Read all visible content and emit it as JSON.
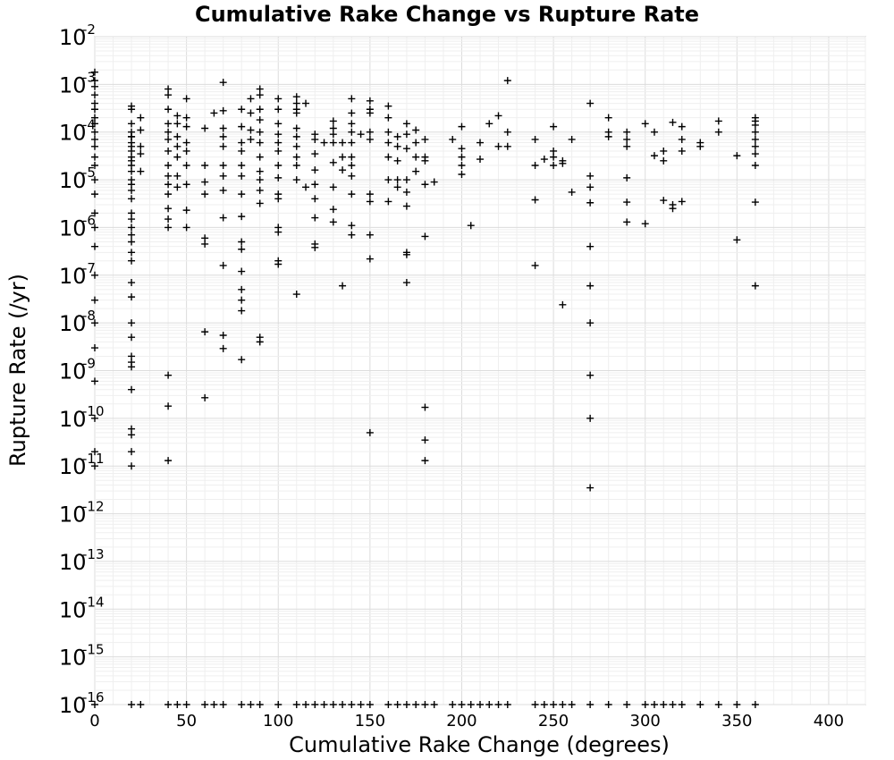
{
  "chart_data": {
    "type": "scatter",
    "title": "Cumulative Rake Change vs Rupture Rate",
    "xlabel": "Cumulative Rake Change (degrees)",
    "ylabel": "Rupture Rate (/yr)",
    "xlim": [
      0,
      420
    ],
    "ylim": [
      1e-16,
      0.01
    ],
    "yscale": "log",
    "grid": true,
    "marker": "plus",
    "marker_color": "#000000",
    "xticks": [
      "0",
      "50",
      "100",
      "150",
      "200",
      "250",
      "300",
      "350",
      "400"
    ],
    "yticks": [
      {
        "base": "10",
        "exp": "-2"
      },
      {
        "base": "10",
        "exp": "-3"
      },
      {
        "base": "10",
        "exp": "-4"
      },
      {
        "base": "10",
        "exp": "-5"
      },
      {
        "base": "10",
        "exp": "-6"
      },
      {
        "base": "10",
        "exp": "-7"
      },
      {
        "base": "10",
        "exp": "-8"
      },
      {
        "base": "10",
        "exp": "-9"
      },
      {
        "base": "10",
        "exp": "-10"
      },
      {
        "base": "10",
        "exp": "-11"
      },
      {
        "base": "10",
        "exp": "-12"
      },
      {
        "base": "10",
        "exp": "-13"
      },
      {
        "base": "10",
        "exp": "-14"
      },
      {
        "base": "10",
        "exp": "-15"
      },
      {
        "base": "10",
        "exp": "-16"
      }
    ],
    "points": [
      [
        0,
        0.0018
      ],
      [
        0,
        0.0012
      ],
      [
        0,
        0.0009
      ],
      [
        0,
        0.0006
      ],
      [
        0,
        0.0004
      ],
      [
        0,
        0.0003
      ],
      [
        0,
        0.0002
      ],
      [
        0,
        0.00015
      ],
      [
        0,
        0.0001
      ],
      [
        0,
        7e-05
      ],
      [
        0,
        5e-05
      ],
      [
        0,
        3e-05
      ],
      [
        0,
        2e-05
      ],
      [
        0,
        1e-05
      ],
      [
        0,
        5e-06
      ],
      [
        0,
        2e-06
      ],
      [
        0,
        1e-06
      ],
      [
        0,
        4e-07
      ],
      [
        0,
        1e-07
      ],
      [
        0,
        3e-08
      ],
      [
        0,
        1e-08
      ],
      [
        0,
        3e-09
      ],
      [
        0,
        6e-10
      ],
      [
        0,
        1e-10
      ],
      [
        0,
        2e-11
      ],
      [
        0,
        1e-11
      ],
      [
        0,
        1e-16
      ],
      [
        20,
        0.00035
      ],
      [
        20,
        0.0003
      ],
      [
        20,
        0.00015
      ],
      [
        20,
        0.0001
      ],
      [
        20,
        8e-05
      ],
      [
        20,
        8e-05
      ],
      [
        20,
        6e-05
      ],
      [
        20,
        5e-05
      ],
      [
        20,
        4e-05
      ],
      [
        20,
        3e-05
      ],
      [
        20,
        2.5e-05
      ],
      [
        20,
        2e-05
      ],
      [
        20,
        1.5e-05
      ],
      [
        20,
        1e-05
      ],
      [
        20,
        8e-06
      ],
      [
        20,
        6e-06
      ],
      [
        20,
        4e-06
      ],
      [
        20,
        2e-06
      ],
      [
        20,
        1.5e-06
      ],
      [
        20,
        1e-06
      ],
      [
        20,
        7e-07
      ],
      [
        20,
        5e-07
      ],
      [
        20,
        3e-07
      ],
      [
        20,
        2e-07
      ],
      [
        20,
        7e-08
      ],
      [
        20,
        3.5e-08
      ],
      [
        20,
        1e-08
      ],
      [
        20,
        5e-09
      ],
      [
        20,
        2e-09
      ],
      [
        20,
        1.5e-09
      ],
      [
        20,
        1.2e-09
      ],
      [
        20,
        4e-10
      ],
      [
        20,
        6e-11
      ],
      [
        20,
        4.5e-11
      ],
      [
        20,
        2e-11
      ],
      [
        20,
        1e-11
      ],
      [
        20,
        1e-16
      ],
      [
        25,
        0.0002
      ],
      [
        25,
        0.00011
      ],
      [
        25,
        5e-05
      ],
      [
        25,
        3.5e-05
      ],
      [
        25,
        1.5e-05
      ],
      [
        25,
        1e-16
      ],
      [
        40,
        0.0008
      ],
      [
        40,
        0.0006
      ],
      [
        40,
        0.0003
      ],
      [
        40,
        0.00015
      ],
      [
        40,
        0.0001
      ],
      [
        40,
        7e-05
      ],
      [
        40,
        4e-05
      ],
      [
        40,
        2e-05
      ],
      [
        40,
        1.2e-05
      ],
      [
        40,
        8e-06
      ],
      [
        40,
        5e-06
      ],
      [
        40,
        2.5e-06
      ],
      [
        40,
        1.5e-06
      ],
      [
        40,
        1e-06
      ],
      [
        40,
        8e-10
      ],
      [
        40,
        1.8e-10
      ],
      [
        40,
        1.3e-11
      ],
      [
        40,
        1e-16
      ],
      [
        45,
        0.00022
      ],
      [
        45,
        0.00015
      ],
      [
        45,
        8e-05
      ],
      [
        45,
        5e-05
      ],
      [
        45,
        3e-05
      ],
      [
        45,
        1.2e-05
      ],
      [
        45,
        7e-06
      ],
      [
        45,
        1e-16
      ],
      [
        50,
        0.0005
      ],
      [
        50,
        0.0002
      ],
      [
        50,
        0.00013
      ],
      [
        50,
        6e-05
      ],
      [
        50,
        4e-05
      ],
      [
        50,
        2e-05
      ],
      [
        50,
        8e-06
      ],
      [
        50,
        2.3e-06
      ],
      [
        50,
        1e-06
      ],
      [
        50,
        1e-16
      ],
      [
        60,
        0.00012
      ],
      [
        60,
        2e-05
      ],
      [
        60,
        9e-06
      ],
      [
        60,
        5e-06
      ],
      [
        60,
        6e-07
      ],
      [
        60,
        4.5e-07
      ],
      [
        60,
        6.5e-09
      ],
      [
        60,
        2.7e-10
      ],
      [
        60,
        1e-16
      ],
      [
        65,
        0.00025
      ],
      [
        65,
        1e-16
      ],
      [
        70,
        0.0011
      ],
      [
        70,
        0.00028
      ],
      [
        70,
        0.00012
      ],
      [
        70,
        8e-05
      ],
      [
        70,
        5e-05
      ],
      [
        70,
        2e-05
      ],
      [
        70,
        1.2e-05
      ],
      [
        70,
        6e-06
      ],
      [
        70,
        1.6e-06
      ],
      [
        70,
        1.6e-07
      ],
      [
        70,
        5.5e-09
      ],
      [
        70,
        2.9e-09
      ],
      [
        70,
        1e-16
      ],
      [
        80,
        0.0003
      ],
      [
        80,
        0.00013
      ],
      [
        80,
        6e-05
      ],
      [
        80,
        4e-05
      ],
      [
        80,
        2e-05
      ],
      [
        80,
        1.2e-05
      ],
      [
        80,
        5e-06
      ],
      [
        80,
        1.7e-06
      ],
      [
        80,
        5e-07
      ],
      [
        80,
        3.5e-07
      ],
      [
        80,
        1.2e-07
      ],
      [
        80,
        5e-08
      ],
      [
        80,
        3e-08
      ],
      [
        80,
        1.8e-08
      ],
      [
        80,
        1.7e-09
      ],
      [
        80,
        1e-16
      ],
      [
        85,
        0.0005
      ],
      [
        85,
        0.00025
      ],
      [
        85,
        0.00011
      ],
      [
        85,
        7e-05
      ],
      [
        85,
        1e-16
      ],
      [
        90,
        0.0008
      ],
      [
        90,
        0.0006
      ],
      [
        90,
        0.0003
      ],
      [
        90,
        0.00018
      ],
      [
        90,
        0.0001
      ],
      [
        90,
        6e-05
      ],
      [
        90,
        3e-05
      ],
      [
        90,
        1.5e-05
      ],
      [
        90,
        1e-05
      ],
      [
        90,
        6e-06
      ],
      [
        90,
        3.2e-06
      ],
      [
        90,
        5e-09
      ],
      [
        90,
        4e-09
      ],
      [
        90,
        1e-16
      ],
      [
        100,
        0.0005
      ],
      [
        100,
        0.0003
      ],
      [
        100,
        0.00015
      ],
      [
        100,
        9e-05
      ],
      [
        100,
        6e-05
      ],
      [
        100,
        4e-05
      ],
      [
        100,
        2e-05
      ],
      [
        100,
        1.1e-05
      ],
      [
        100,
        5e-06
      ],
      [
        100,
        4e-06
      ],
      [
        100,
        1e-06
      ],
      [
        100,
        8e-07
      ],
      [
        100,
        2e-07
      ],
      [
        100,
        1.7e-07
      ],
      [
        100,
        1e-16
      ],
      [
        110,
        0.00055
      ],
      [
        110,
        0.0004
      ],
      [
        110,
        0.0003
      ],
      [
        110,
        0.00025
      ],
      [
        110,
        0.00012
      ],
      [
        110,
        8e-05
      ],
      [
        110,
        5e-05
      ],
      [
        110,
        3e-05
      ],
      [
        110,
        2e-05
      ],
      [
        110,
        1e-05
      ],
      [
        110,
        4e-08
      ],
      [
        110,
        1e-16
      ],
      [
        115,
        0.0004
      ],
      [
        115,
        7e-06
      ],
      [
        115,
        1e-16
      ],
      [
        120,
        9e-05
      ],
      [
        120,
        7e-05
      ],
      [
        120,
        3.5e-05
      ],
      [
        120,
        1.6e-05
      ],
      [
        120,
        8e-06
      ],
      [
        120,
        4e-06
      ],
      [
        120,
        1.6e-06
      ],
      [
        120,
        4.5e-07
      ],
      [
        120,
        3.8e-07
      ],
      [
        120,
        1e-16
      ],
      [
        125,
        6e-05
      ],
      [
        125,
        1e-16
      ],
      [
        130,
        0.00017
      ],
      [
        130,
        0.00012
      ],
      [
        130,
        9e-05
      ],
      [
        130,
        6e-05
      ],
      [
        130,
        2.3e-05
      ],
      [
        130,
        7e-06
      ],
      [
        130,
        2.4e-06
      ],
      [
        130,
        1.3e-06
      ],
      [
        130,
        1e-16
      ],
      [
        135,
        6e-05
      ],
      [
        135,
        3e-05
      ],
      [
        135,
        1.6e-05
      ],
      [
        135,
        6e-08
      ],
      [
        135,
        1e-16
      ],
      [
        140,
        0.0005
      ],
      [
        140,
        0.00025
      ],
      [
        140,
        0.00015
      ],
      [
        140,
        0.0001
      ],
      [
        140,
        6e-05
      ],
      [
        140,
        3e-05
      ],
      [
        140,
        2e-05
      ],
      [
        140,
        1.2e-05
      ],
      [
        140,
        5e-06
      ],
      [
        140,
        1.1e-06
      ],
      [
        140,
        7e-07
      ],
      [
        140,
        1e-16
      ],
      [
        145,
        9e-05
      ],
      [
        145,
        1e-16
      ],
      [
        150,
        0.00045
      ],
      [
        150,
        0.0003
      ],
      [
        150,
        0.00025
      ],
      [
        150,
        0.0001
      ],
      [
        150,
        7e-05
      ],
      [
        150,
        5e-06
      ],
      [
        150,
        3.5e-06
      ],
      [
        150,
        7e-07
      ],
      [
        150,
        2.2e-07
      ],
      [
        150,
        5e-11
      ],
      [
        150,
        1e-16
      ],
      [
        160,
        0.00035
      ],
      [
        160,
        0.0002
      ],
      [
        160,
        0.0001
      ],
      [
        160,
        6e-05
      ],
      [
        160,
        3e-05
      ],
      [
        160,
        1e-05
      ],
      [
        160,
        3.5e-06
      ],
      [
        160,
        1e-16
      ],
      [
        165,
        8e-05
      ],
      [
        165,
        5e-05
      ],
      [
        165,
        2.5e-05
      ],
      [
        165,
        1e-05
      ],
      [
        165,
        7e-06
      ],
      [
        165,
        1e-16
      ],
      [
        170,
        0.00015
      ],
      [
        170,
        9e-05
      ],
      [
        170,
        4.5e-05
      ],
      [
        170,
        1e-05
      ],
      [
        170,
        5.5e-06
      ],
      [
        170,
        2.8e-06
      ],
      [
        170,
        3e-07
      ],
      [
        170,
        2.7e-07
      ],
      [
        170,
        7e-08
      ],
      [
        170,
        1e-16
      ],
      [
        175,
        0.00011
      ],
      [
        175,
        6e-05
      ],
      [
        175,
        3e-05
      ],
      [
        175,
        1.5e-05
      ],
      [
        175,
        1e-16
      ],
      [
        180,
        7e-05
      ],
      [
        180,
        3e-05
      ],
      [
        180,
        2.5e-05
      ],
      [
        180,
        8e-06
      ],
      [
        180,
        6.5e-07
      ],
      [
        180,
        1.7e-10
      ],
      [
        180,
        3.5e-11
      ],
      [
        180,
        1.3e-11
      ],
      [
        180,
        1e-16
      ],
      [
        185,
        9e-06
      ],
      [
        185,
        1e-16
      ],
      [
        195,
        7e-05
      ],
      [
        195,
        1e-16
      ],
      [
        200,
        0.00013
      ],
      [
        200,
        4.5e-05
      ],
      [
        200,
        3e-05
      ],
      [
        200,
        2e-05
      ],
      [
        200,
        1.3e-05
      ],
      [
        200,
        1e-16
      ],
      [
        205,
        1.1e-06
      ],
      [
        205,
        1e-16
      ],
      [
        210,
        6e-05
      ],
      [
        210,
        2.7e-05
      ],
      [
        210,
        1e-16
      ],
      [
        215,
        0.00015
      ],
      [
        215,
        1e-16
      ],
      [
        220,
        0.00022
      ],
      [
        220,
        5e-05
      ],
      [
        220,
        1e-16
      ],
      [
        225,
        0.0012
      ],
      [
        225,
        0.0001
      ],
      [
        225,
        5e-05
      ],
      [
        225,
        1e-16
      ],
      [
        240,
        7e-05
      ],
      [
        240,
        2e-05
      ],
      [
        240,
        3.8e-06
      ],
      [
        240,
        1.6e-07
      ],
      [
        240,
        1e-16
      ],
      [
        245,
        2.7e-05
      ],
      [
        245,
        1e-16
      ],
      [
        250,
        0.00013
      ],
      [
        250,
        4e-05
      ],
      [
        250,
        3e-05
      ],
      [
        250,
        2e-05
      ],
      [
        250,
        1e-16
      ],
      [
        255,
        2.5e-05
      ],
      [
        255,
        2.2e-05
      ],
      [
        255,
        2.4e-08
      ],
      [
        255,
        1e-16
      ],
      [
        260,
        7e-05
      ],
      [
        260,
        5.5e-06
      ],
      [
        260,
        1e-16
      ],
      [
        270,
        0.0004
      ],
      [
        270,
        1.2e-05
      ],
      [
        270,
        7e-06
      ],
      [
        270,
        3.3e-06
      ],
      [
        270,
        4e-07
      ],
      [
        270,
        6e-08
      ],
      [
        270,
        1e-08
      ],
      [
        270,
        8e-10
      ],
      [
        270,
        1e-10
      ],
      [
        270,
        3.5e-12
      ],
      [
        270,
        1e-16
      ],
      [
        280,
        0.0002
      ],
      [
        280,
        0.0001
      ],
      [
        280,
        8e-05
      ],
      [
        280,
        1e-16
      ],
      [
        290,
        0.0001
      ],
      [
        290,
        7e-05
      ],
      [
        290,
        5e-05
      ],
      [
        290,
        1.1e-05
      ],
      [
        290,
        3.4e-06
      ],
      [
        290,
        1.3e-06
      ],
      [
        290,
        1e-16
      ],
      [
        300,
        0.00015
      ],
      [
        300,
        1.2e-06
      ],
      [
        300,
        1e-16
      ],
      [
        305,
        0.0001
      ],
      [
        305,
        3.2e-05
      ],
      [
        305,
        1e-16
      ],
      [
        310,
        4e-05
      ],
      [
        310,
        2.5e-05
      ],
      [
        310,
        3.7e-06
      ],
      [
        310,
        1e-16
      ],
      [
        315,
        0.00016
      ],
      [
        315,
        3e-06
      ],
      [
        315,
        2.5e-06
      ],
      [
        315,
        1e-16
      ],
      [
        320,
        0.00013
      ],
      [
        320,
        7e-05
      ],
      [
        320,
        4e-05
      ],
      [
        320,
        3.5e-06
      ],
      [
        320,
        1e-16
      ],
      [
        330,
        6e-05
      ],
      [
        330,
        5e-05
      ],
      [
        330,
        1e-16
      ],
      [
        340,
        0.00017
      ],
      [
        340,
        0.0001
      ],
      [
        340,
        1e-16
      ],
      [
        350,
        3.2e-05
      ],
      [
        350,
        5.5e-07
      ],
      [
        350,
        1e-16
      ],
      [
        360,
        0.0002
      ],
      [
        360,
        0.00017
      ],
      [
        360,
        0.00014
      ],
      [
        360,
        0.0001
      ],
      [
        360,
        7e-05
      ],
      [
        360,
        5e-05
      ],
      [
        360,
        3.5e-05
      ],
      [
        360,
        2e-05
      ],
      [
        360,
        3.4e-06
      ],
      [
        360,
        6e-08
      ],
      [
        360,
        1e-16
      ]
    ]
  }
}
